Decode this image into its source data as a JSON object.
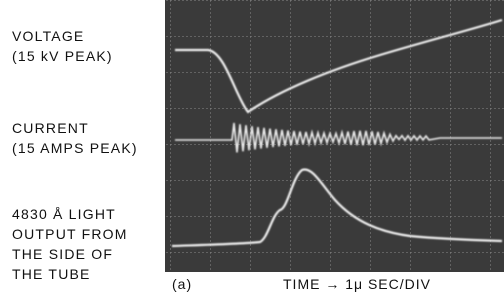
{
  "labels": {
    "voltage": [
      "VOLTAGE",
      "(15 kV PEAK)"
    ],
    "current": [
      "CURRENT",
      "(15 AMPS PEAK)"
    ],
    "light": [
      "4830 Å LIGHT",
      "OUTPUT FROM",
      "THE SIDE OF",
      "THE TUBE"
    ]
  },
  "caption": {
    "panel": "(a)",
    "timescale": "TIME → 1μ SEC/DIV"
  }
}
